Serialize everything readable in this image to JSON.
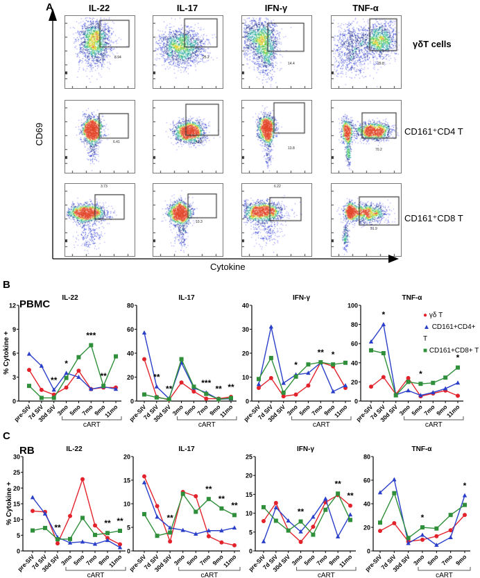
{
  "panel_a": {
    "letter": "A",
    "columns": [
      "IL-22",
      "IL-17",
      "IFN-γ",
      "TNF-α"
    ],
    "rows": [
      {
        "label": "γδT cells",
        "gates": [
          "8.94",
          "25.2",
          "14.4",
          "29.8"
        ]
      },
      {
        "label": "CD161⁺CD4 T",
        "gates": [
          "6.41",
          "41.5",
          "13.8",
          "70.2"
        ]
      },
      {
        "label": "CD161⁺CD8 T",
        "gates": [
          "3.73",
          "10.3",
          "6.22",
          "51.9"
        ]
      }
    ],
    "y_axis_label": "CD69",
    "x_axis_label": "Cytokine"
  },
  "panel_b": {
    "letter": "B",
    "section": "PBMC",
    "ylabel": "% Cytokine +"
  },
  "panel_c": {
    "letter": "C",
    "section": "RB",
    "ylabel": "% Cytokine +"
  },
  "colors": {
    "gd": "#e3232c",
    "cd4": "#2a3fc9",
    "cd8": "#2f8f3a"
  },
  "legend": [
    {
      "name": "γδ T",
      "marker": "circle",
      "color": "#e3232c"
    },
    {
      "name": "CD161+CD4+ T",
      "marker": "triangle",
      "color": "#2a3fc9"
    },
    {
      "name": "CD161+CD8+ T",
      "marker": "square",
      "color": "#2f8f3a"
    }
  ],
  "chart_data": [
    {
      "panel": "PBMC",
      "type": "line",
      "title": "IL-22",
      "ylim": [
        0,
        12
      ],
      "yticks": [
        0,
        3,
        6,
        9,
        12
      ],
      "categories": [
        "pre-SIV",
        "7d SIV",
        "30d SIV",
        "3mo",
        "5mo",
        "7mo",
        "9mo",
        "11mo"
      ],
      "bracket_label": "cART",
      "bracket_from": "3mo",
      "series": [
        {
          "name": "γδ T",
          "values": [
            3.9,
            1.4,
            0.8,
            1.7,
            3.8,
            1.5,
            1.7,
            1.7
          ]
        },
        {
          "name": "CD161+CD4+ T",
          "values": [
            5.9,
            4.4,
            1.4,
            3.5,
            3.0,
            1.5,
            1.8,
            1.5
          ]
        },
        {
          "name": "CD161+CD8+ T",
          "values": [
            1.9,
            0.4,
            0.4,
            2.9,
            5.5,
            7.0,
            1.9,
            5.6
          ]
        }
      ],
      "annotations": [
        {
          "category": "30d SIV",
          "text": "**"
        },
        {
          "category": "3mo",
          "text": "*"
        },
        {
          "category": "7mo",
          "text": "***"
        },
        {
          "category": "9mo",
          "text": "**"
        }
      ]
    },
    {
      "panel": "PBMC",
      "type": "line",
      "title": "IL-17",
      "ylim": [
        0,
        80
      ],
      "yticks": [
        0,
        20,
        40,
        60,
        80
      ],
      "categories": [
        "pre-SIV",
        "7d SIV",
        "30d SIV",
        "3mo",
        "5mo",
        "7mo",
        "9mo",
        "11mo"
      ],
      "bracket_label": "cART",
      "bracket_from": "3mo",
      "series": [
        {
          "name": "γδ T",
          "values": [
            35,
            3.5,
            1,
            15.5,
            8,
            2,
            2,
            3.5
          ]
        },
        {
          "name": "CD161+CD4+ T",
          "values": [
            57,
            12,
            2,
            32,
            11,
            7,
            1.5,
            2
          ]
        },
        {
          "name": "CD161+CD8+ T",
          "values": [
            5.5,
            3,
            1.5,
            35,
            12,
            6,
            1.5,
            2.5
          ]
        }
      ],
      "annotations": [
        {
          "category": "7d SIV",
          "text": "**"
        },
        {
          "category": "30d SIV",
          "text": "**"
        },
        {
          "category": "7mo",
          "text": "***"
        },
        {
          "category": "9mo",
          "text": "**"
        },
        {
          "category": "11mo",
          "text": "**"
        }
      ]
    },
    {
      "panel": "PBMC",
      "type": "line",
      "title": "IFN-γ",
      "ylim": [
        0,
        40
      ],
      "yticks": [
        0,
        10,
        20,
        30,
        40
      ],
      "categories": [
        "pre-SIV",
        "7d SIV",
        "30d SIV",
        "3mo",
        "5mo",
        "7mo",
        "9mo",
        "11mo"
      ],
      "bracket_label": "cART",
      "bracket_from": "3mo",
      "series": [
        {
          "name": "γδ T",
          "values": [
            5.5,
            9.6,
            2,
            2.7,
            6.5,
            16.2,
            14.5,
            5.5
          ]
        },
        {
          "name": "CD161+CD4+ T",
          "values": [
            7,
            31,
            7.5,
            11,
            11.7,
            16,
            4,
            6.5
          ]
        },
        {
          "name": "CD161+CD8+ T",
          "values": [
            9.2,
            18,
            3.5,
            10.2,
            15.3,
            16.2,
            15.3,
            16
          ]
        }
      ],
      "annotations": [
        {
          "category": "3mo",
          "text": "*"
        },
        {
          "category": "7mo",
          "text": "**"
        },
        {
          "category": "9mo",
          "text": "*"
        }
      ]
    },
    {
      "panel": "PBMC",
      "type": "line",
      "title": "TNF-α",
      "ylim": [
        0,
        100
      ],
      "yticks": [
        0,
        20,
        40,
        60,
        80,
        100
      ],
      "categories": [
        "pre-SIV",
        "7d SIV",
        "30d SIV",
        "3mo",
        "5mo",
        "7mo",
        "9mo",
        "11mo"
      ],
      "bracket_label": "cART",
      "bracket_from": "3mo",
      "series": [
        {
          "name": "γδ T",
          "values": [
            15,
            25,
            7,
            24,
            5,
            8,
            11,
            5.5
          ]
        },
        {
          "name": "CD161+CD4+ T",
          "values": [
            62,
            80,
            6.5,
            11,
            6,
            9,
            13,
            19
          ]
        },
        {
          "name": "CD161+CD8+ T",
          "values": [
            53,
            50,
            6,
            20,
            18,
            19,
            24.5,
            35
          ]
        }
      ],
      "annotations": [
        {
          "category": "7d SIV",
          "text": "*"
        },
        {
          "category": "5mo",
          "text": "*"
        },
        {
          "category": "11mo",
          "text": "*"
        }
      ]
    },
    {
      "panel": "RB",
      "type": "line",
      "title": "IL-22",
      "ylim": [
        0,
        30
      ],
      "yticks": [
        0,
        5,
        10,
        15,
        20,
        25,
        30
      ],
      "categories": [
        "pre-SIV",
        "7d SIV",
        "30d SIV",
        "3mo",
        "5mo",
        "7mo",
        "9mo",
        "11mo"
      ],
      "bracket_label": "cART",
      "bracket_from": "3mo",
      "series": [
        {
          "name": "γδ T",
          "values": [
            12.7,
            12.4,
            2.4,
            11.1,
            22.8,
            8.1,
            4.1,
            2.1
          ]
        },
        {
          "name": "CD161+CD4+ T",
          "values": [
            17,
            11.8,
            4.3,
            2.6,
            2.9,
            2.2,
            3.4,
            1.1
          ]
        },
        {
          "name": "CD161+CD8+ T",
          "values": [
            6.5,
            7.3,
            3.7,
            3.8,
            10.5,
            5.1,
            5.7,
            6.4
          ]
        }
      ],
      "annotations": [
        {
          "category": "30d SIV",
          "text": "**"
        },
        {
          "category": "9mo",
          "text": "**"
        },
        {
          "category": "11mo",
          "text": "**"
        }
      ]
    },
    {
      "panel": "RB",
      "type": "line",
      "title": "IL-17",
      "ylim": [
        0,
        20
      ],
      "yticks": [
        0,
        5,
        10,
        15,
        20
      ],
      "categories": [
        "pre-SIV",
        "7d SIV",
        "30d SIV",
        "3mo",
        "5mo",
        "7mo",
        "9mo",
        "11mo"
      ],
      "bracket_label": "cART",
      "bracket_from": "3mo",
      "series": [
        {
          "name": "γδ T",
          "values": [
            15.8,
            9.5,
            2,
            12.5,
            11.6,
            3.1,
            1.8,
            1.2
          ]
        },
        {
          "name": "CD161+CD4+ T",
          "values": [
            14.5,
            7.2,
            4.9,
            4.4,
            3.6,
            4.3,
            4.3,
            4.9
          ]
        },
        {
          "name": "CD161+CD8+ T",
          "values": [
            7.8,
            3.2,
            3.9,
            12.1,
            8.3,
            11,
            9,
            7.6
          ]
        }
      ],
      "annotations": [
        {
          "category": "30d SIV",
          "text": "**"
        },
        {
          "category": "7mo",
          "text": "**"
        },
        {
          "category": "9mo",
          "text": "**"
        },
        {
          "category": "11mo",
          "text": "**"
        }
      ]
    },
    {
      "panel": "RB",
      "type": "line",
      "title": "IFN-γ",
      "ylim": [
        0,
        25
      ],
      "yticks": [
        0,
        5,
        10,
        15,
        20,
        25
      ],
      "categories": [
        "pre-SIV",
        "7d SIV",
        "30d SIV",
        "3mo",
        "5mo",
        "7mo",
        "9mo",
        "11mo"
      ],
      "bracket_label": "cART",
      "bracket_from": "3mo",
      "series": [
        {
          "name": "γδ T",
          "values": [
            7.9,
            12.7,
            5.4,
            2.4,
            6.4,
            12.9,
            14.8,
            12
          ]
        },
        {
          "name": "CD161+CD4+ T",
          "values": [
            2.5,
            11.5,
            8,
            5.1,
            9,
            13.8,
            3.8,
            9.6
          ]
        },
        {
          "name": "CD161+CD8+ T",
          "values": [
            11.6,
            8,
            5.4,
            7.8,
            4.3,
            10.9,
            15.2,
            8.2
          ]
        }
      ],
      "annotations": [
        {
          "category": "3mo",
          "text": "**"
        },
        {
          "category": "9mo",
          "text": "**"
        },
        {
          "category": "11mo",
          "text": "**"
        }
      ]
    },
    {
      "panel": "RB",
      "type": "line",
      "title": "TNF-α",
      "ylim": [
        0,
        80
      ],
      "yticks": [
        0,
        20,
        40,
        60,
        80
      ],
      "categories": [
        "pre-SIV",
        "7d SIV",
        "30d SIV",
        "3mo",
        "5mo",
        "7mo",
        "9mo"
      ],
      "bracket_label": "cART",
      "bracket_from": "3mo",
      "series": [
        {
          "name": "γδ T",
          "values": [
            17,
            23.5,
            8,
            9.5,
            12.5,
            17.5,
            30.5
          ]
        },
        {
          "name": "CD161+CD4+ T",
          "values": [
            49.5,
            60.5,
            6.5,
            13.5,
            5,
            11.5,
            47
          ]
        },
        {
          "name": "CD161+CD8+ T",
          "values": [
            24,
            49,
            11,
            20,
            19,
            30.5,
            39
          ]
        }
      ],
      "annotations": [
        {
          "category": "3mo",
          "text": "*"
        },
        {
          "category": "9mo",
          "text": "*"
        }
      ]
    }
  ]
}
